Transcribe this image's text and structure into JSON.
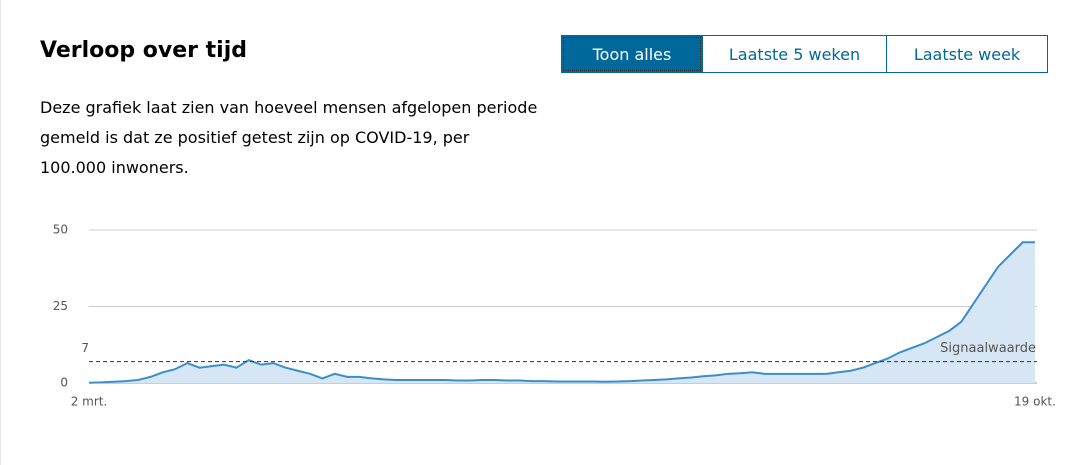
{
  "header": {
    "title": "Verloop over tijd",
    "description": "Deze grafiek laat zien van hoeveel mensen afgelopen periode gemeld is dat ze positief getest zijn op COVID-19, per 100.000 inwoners."
  },
  "buttons": [
    "Toon alles",
    "Laatste 5 weken",
    "Laatste week"
  ],
  "active_button": 0,
  "chart_data": {
    "type": "area",
    "categories": [
      "2 mrt.",
      null,
      null,
      null,
      null,
      null,
      null,
      null,
      null,
      null,
      null,
      null,
      null,
      null,
      null,
      null,
      null,
      null,
      null,
      null,
      null,
      null,
      null,
      null,
      null,
      null,
      null,
      null,
      null,
      null,
      null,
      null,
      null,
      null,
      null,
      null,
      null,
      null,
      null,
      null,
      null,
      null,
      null,
      null,
      null,
      null,
      null,
      null,
      null,
      null,
      null,
      null,
      null,
      null,
      null,
      null,
      null,
      null,
      null,
      null,
      null,
      null,
      null,
      null,
      null,
      null,
      null,
      null,
      null,
      null,
      null,
      null,
      null,
      null,
      null,
      null,
      null,
      "19 okt."
    ],
    "values": [
      0.1,
      0.2,
      0.4,
      0.6,
      1,
      2,
      3.5,
      4.5,
      6.5,
      5,
      5.5,
      6,
      5,
      7.5,
      6,
      6.5,
      5,
      4,
      3,
      1.5,
      3,
      2,
      2,
      1.5,
      1.2,
      1,
      1,
      1,
      1,
      1,
      0.8,
      0.8,
      1,
      1,
      0.8,
      0.8,
      0.6,
      0.6,
      0.5,
      0.5,
      0.5,
      0.5,
      0.4,
      0.5,
      0.6,
      0.8,
      1,
      1.2,
      1.5,
      1.8,
      2.2,
      2.5,
      3,
      3.2,
      3.5,
      3,
      3,
      3,
      3,
      3,
      3,
      3.5,
      4,
      5,
      6.5,
      8,
      10,
      11.5,
      13,
      15,
      17,
      20,
      26,
      32,
      38,
      42,
      46,
      46
    ],
    "color": "#3a8fcb",
    "fill": "#d6e6f4",
    "ylim": [
      0,
      50
    ],
    "yticks": [
      0,
      25,
      50
    ],
    "grid": true,
    "reference_line": {
      "value": 7,
      "label": "Signaalwaarde"
    }
  }
}
